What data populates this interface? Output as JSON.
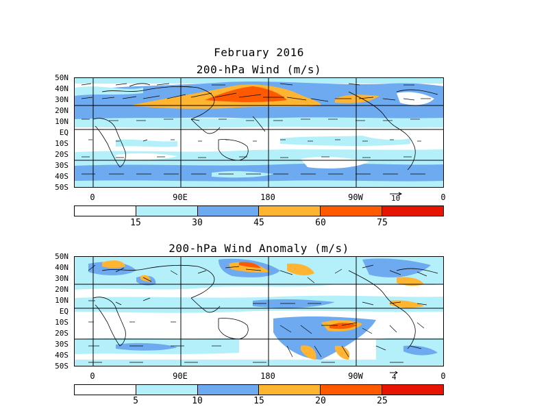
{
  "main_title": "February 2016",
  "top_panel": {
    "title": "200-hPa Wind (m/s)",
    "lat_labels": [
      "50N",
      "40N",
      "30N",
      "20N",
      "10N",
      "EQ",
      "10S",
      "20S",
      "30S",
      "40S",
      "50S"
    ],
    "lon_labels": [
      "0",
      "90E",
      "180",
      "90W",
      "0"
    ],
    "ref_vector": "10",
    "colorbar": {
      "colors": [
        "#ffffff",
        "#b4f0fa",
        "#6eaaf0",
        "#ffb432",
        "#ff5a00",
        "#e61400"
      ],
      "labels": [
        "15",
        "30",
        "45",
        "60",
        "75"
      ]
    }
  },
  "bottom_panel": {
    "title": "200-hPa Wind Anomaly (m/s)",
    "lat_labels": [
      "50N",
      "40N",
      "30N",
      "20N",
      "10N",
      "EQ",
      "10S",
      "20S",
      "30S",
      "40S",
      "50S"
    ],
    "lon_labels": [
      "0",
      "90E",
      "180",
      "90W",
      "0"
    ],
    "ref_vector": "4",
    "colorbar": {
      "colors": [
        "#ffffff",
        "#b4f0fa",
        "#6eaaf0",
        "#ffb432",
        "#ff5a00",
        "#e61400"
      ],
      "labels": [
        "5",
        "10",
        "15",
        "20",
        "25"
      ]
    }
  }
}
